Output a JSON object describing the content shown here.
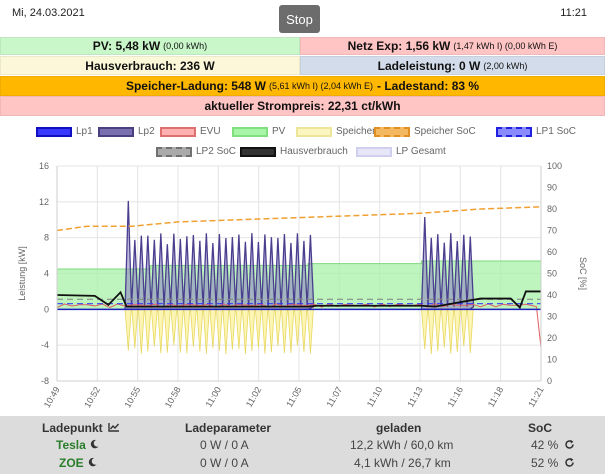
{
  "topbar": {
    "date": "Mi, 24.03.2021",
    "time": "11:21",
    "stop_label": "Stop"
  },
  "summary": {
    "pv": {
      "main": "PV: 5,48 kW",
      "sub": "(0,00 kWh)"
    },
    "netz": {
      "main": "Netz Exp: 1,56 kW",
      "sub": "(1,47 kWh I) (0,00 kWh E)"
    },
    "hausverbrauch": {
      "main": "Hausverbrauch: 236 W"
    },
    "ladeleistung": {
      "main": "Ladeleistung: 0 W",
      "sub": "(2,00 kWh)"
    },
    "speicher": {
      "main1": "Speicher-Ladung: 548 W",
      "sub": "(5,61 kWh I) (2,04 kWh E)",
      "main2": "- Ladestand: 83 %"
    },
    "strompreis": {
      "main": "aktueller Strompreis: 22,31 ct/kWh"
    }
  },
  "colors": {
    "pv_bg": "#c9f7c9",
    "netz_bg": "#ffc4c4",
    "haus_bg": "#fbf7d8",
    "lade_bg": "#d3dcea",
    "speicher_bg": "#ffb700",
    "table_bg": "#dcdcdc"
  },
  "chart_data": {
    "type": "line",
    "legend": [
      {
        "name": "Lp1",
        "color": "#3030ff",
        "style": "solid"
      },
      {
        "name": "Lp2",
        "color": "#5a4f8f",
        "style": "solid"
      },
      {
        "name": "EVU",
        "color": "#f08080",
        "style": "solid"
      },
      {
        "name": "PV",
        "color": "#90ee90",
        "style": "solid"
      },
      {
        "name": "Speicher",
        "color": "#f0e68c",
        "style": "solid"
      },
      {
        "name": "Speicher SoC",
        "color": "#f0a030",
        "style": "dashed"
      },
      {
        "name": "LP1 SoC",
        "color": "#3030ff",
        "style": "dashed"
      },
      {
        "name": "LP2 SoC",
        "color": "#888888",
        "style": "dashed"
      },
      {
        "name": "Hausverbrauch",
        "color": "#222222",
        "style": "solid"
      },
      {
        "name": "LP Gesamt",
        "color": "#d8d8f0",
        "style": "solid"
      }
    ],
    "x_ticks": [
      "10:49",
      "10:52",
      "10:55",
      "10:58",
      "11:00",
      "11:02",
      "11:05",
      "11:07",
      "11:10",
      "11:13",
      "11:16",
      "11:18",
      "11:21"
    ],
    "y_left": {
      "label": "Leistung [kW]",
      "ticks": [
        16,
        12,
        8,
        4,
        0,
        -4,
        -8
      ],
      "range": [
        -8,
        16
      ]
    },
    "y_right": {
      "label": "SoC [%]",
      "ticks": [
        100,
        90,
        80,
        70,
        60,
        50,
        40,
        30,
        20,
        10,
        0
      ],
      "range": [
        0,
        100
      ]
    },
    "x_range_min": [
      0,
      32
    ],
    "lp2_active_segments": [
      {
        "start": 4.5,
        "end": 16.6,
        "peak_kw": 8.5,
        "spike_kw": 12.1
      },
      {
        "start": 24.1,
        "end": 27.3,
        "peak_kw": 8.5,
        "spike_kw": 10.3
      }
    ],
    "pv_band_kw": [
      {
        "start": 0,
        "end": 6.2,
        "kw": 4.5
      },
      {
        "start": 6.2,
        "end": 16.6,
        "kw": 4.9
      },
      {
        "start": 16.6,
        "end": 24.1,
        "kw": 5.1
      },
      {
        "start": 24.1,
        "end": 32,
        "kw": 5.4
      }
    ],
    "speicher_soc": [
      {
        "x": 0,
        "y": 70
      },
      {
        "x": 2,
        "y": 72
      },
      {
        "x": 5,
        "y": 72
      },
      {
        "x": 8,
        "y": 74
      },
      {
        "x": 12,
        "y": 75
      },
      {
        "x": 16,
        "y": 76
      },
      {
        "x": 20,
        "y": 77
      },
      {
        "x": 24,
        "y": 78
      },
      {
        "x": 28,
        "y": 80
      },
      {
        "x": 32,
        "y": 81
      }
    ],
    "lp1_soc_pct": 36,
    "lp2_soc_pct": 38,
    "hausverbrauch": [
      {
        "x": 0,
        "y": 1.6
      },
      {
        "x": 2.5,
        "y": 1.5
      },
      {
        "x": 3.4,
        "y": 0.5
      },
      {
        "x": 4.2,
        "y": 1.9
      },
      {
        "x": 4.6,
        "y": 0.3
      },
      {
        "x": 16.6,
        "y": 0.3
      },
      {
        "x": 17.2,
        "y": 0.4
      },
      {
        "x": 24.1,
        "y": 0.4
      },
      {
        "x": 25,
        "y": 0.3
      },
      {
        "x": 28,
        "y": 1.2
      },
      {
        "x": 30,
        "y": 1.2
      },
      {
        "x": 30.6,
        "y": 0.2
      },
      {
        "x": 31,
        "y": 2.0
      },
      {
        "x": 32,
        "y": 2.0
      }
    ],
    "evu_end_kw": -4.3,
    "speicher_discharge_kw": -5.0
  },
  "table": {
    "headers": [
      "Ladepunkt",
      "Ladeparameter",
      "geladen",
      "SoC"
    ],
    "rows": [
      {
        "name": "Tesla",
        "param": "0 W / 0 A",
        "geladen": "12,2 kWh / 60,0 km",
        "soc": "42 %"
      },
      {
        "name": "ZOE",
        "param": "0 W / 0 A",
        "geladen": "4,1 kWh / 26,7 km",
        "soc": "52 %"
      }
    ]
  },
  "icons": {
    "ladepunkt_header": "chart-line-icon",
    "moon": "moon-icon",
    "refresh": "refresh-icon"
  }
}
